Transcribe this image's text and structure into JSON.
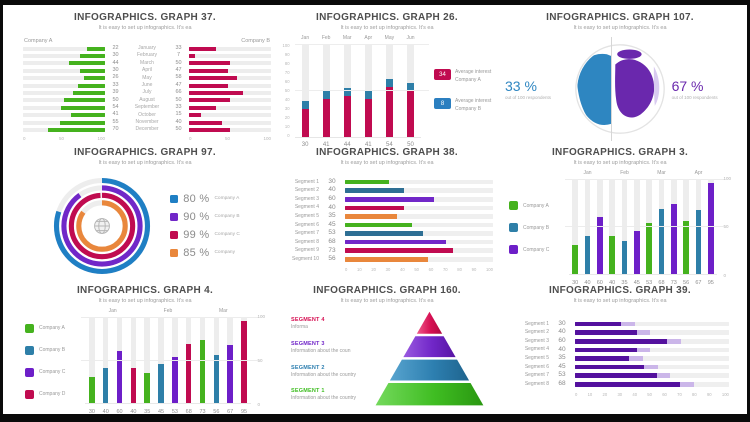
{
  "page": {
    "subtitle": "It is easy to set up infographics. It's ea",
    "background": "#ffffff",
    "frame_color": "#000000"
  },
  "chart_data": [
    {
      "id": "graph-37",
      "type": "tornado",
      "title": "INFOGRAPHICS. GRAPH 37.",
      "categories": [
        "January",
        "February",
        "March",
        "April",
        "May",
        "June",
        "July",
        "August",
        "September",
        "October",
        "November",
        "December"
      ],
      "series": [
        {
          "name": "Company A",
          "color": "#45b21e",
          "values": [
            22,
            30,
            44,
            30,
            26,
            33,
            39,
            50,
            54,
            41,
            55,
            70
          ]
        },
        {
          "name": "Company B",
          "color": "#c00b50",
          "values": [
            33,
            7,
            50,
            47,
            58,
            47,
            66,
            50,
            33,
            15,
            40,
            50
          ]
        }
      ],
      "axis_ticks": [
        "0",
        "50",
        "100"
      ],
      "xlim": [
        0,
        100
      ]
    },
    {
      "id": "graph-26",
      "type": "columns",
      "title": "INFOGRAPHICS. GRAPH 26.",
      "months": [
        "Jan",
        "Feb",
        "Mar",
        "Apr",
        "May",
        "Jun"
      ],
      "values": [
        30,
        41,
        44,
        41,
        54,
        50
      ],
      "cap_value": 8,
      "bar_color": "#c00b50",
      "cap_color": "#2e7fa8",
      "yticks": [
        "100",
        "90",
        "80",
        "70",
        "60",
        "50",
        "40",
        "30",
        "20",
        "10",
        "0"
      ],
      "ylim": [
        0,
        100
      ],
      "legend": [
        {
          "badge": "34",
          "color": "#c00b50",
          "label": "Average interest Company A"
        },
        {
          "badge": "8",
          "color": "#2b7fc0",
          "label": "Average interest Company B"
        }
      ]
    },
    {
      "id": "graph-107",
      "type": "globe",
      "title": "INFOGRAPHICS. GRAPH 107.",
      "left": {
        "value": "33 %",
        "caption": "out of 100 respondents",
        "color": "#2e86c1"
      },
      "right": {
        "value": "67 %",
        "caption": "out of 100 respondents",
        "color": "#6a28ad"
      }
    },
    {
      "id": "graph-97",
      "type": "rings",
      "title": "INFOGRAPHICS. GRAPH 97.",
      "items": [
        {
          "value": 80,
          "pct": "80 %",
          "label": "Company A",
          "color": "#1f7fc4"
        },
        {
          "value": 90,
          "pct": "90 %",
          "label": "Company B",
          "color": "#7127c8"
        },
        {
          "value": 99,
          "pct": "99 %",
          "label": "Company C",
          "color": "#c00b50"
        },
        {
          "value": 85,
          "pct": "85 %",
          "label": "Company",
          "color": "#e9873c"
        }
      ]
    },
    {
      "id": "graph-38",
      "type": "hbars",
      "title": "INFOGRAPHICS. GRAPH 38.",
      "categories": [
        "Segment 1",
        "Segment 2",
        "Segment 3",
        "Segment 4",
        "Segment 5",
        "Segment 6",
        "Segment 7",
        "Segment 8",
        "Segment 9",
        "Segment 10"
      ],
      "values": [
        30,
        40,
        60,
        40,
        35,
        45,
        53,
        68,
        73,
        56
      ],
      "colors": [
        "#45b21e",
        "#2e6f94",
        "#7127c8",
        "#c00b50",
        "#e9873c"
      ],
      "axis_ticks": [
        "0",
        "10",
        "20",
        "30",
        "40",
        "50",
        "60",
        "70",
        "80",
        "90",
        "100"
      ],
      "xlim": [
        0,
        100
      ]
    },
    {
      "id": "graph-3",
      "type": "gcols",
      "title": "INFOGRAPHICS. GRAPH 3.",
      "months": [
        "Jan",
        "Feb",
        "Mar",
        "Apr"
      ],
      "values": [
        30,
        40,
        60,
        40,
        35,
        45,
        53,
        68,
        73,
        56,
        67,
        95
      ],
      "colors": [
        "#45b21e",
        "#2e7fa8",
        "#6d1fc8"
      ],
      "legend": [
        {
          "label": "Company A",
          "color": "#45b21e"
        },
        {
          "label": "Company B",
          "color": "#2e7fa8"
        },
        {
          "label": "Company C",
          "color": "#6d1fc8"
        }
      ],
      "yticks": [
        "100",
        "50",
        "0"
      ],
      "ylim": [
        0,
        100
      ]
    },
    {
      "id": "graph-4",
      "type": "gcols",
      "title": "INFOGRAPHICS. GRAPH 4.",
      "months": [
        "Jan",
        "Feb",
        "Mar"
      ],
      "values": [
        30,
        40,
        60,
        40,
        35,
        45,
        53,
        68,
        73,
        56,
        67,
        95
      ],
      "colors": [
        "#45b21e",
        "#2e7fa8",
        "#6d1fc8",
        "#c00b50"
      ],
      "legend": [
        {
          "label": "Company A",
          "color": "#45b21e"
        },
        {
          "label": "Company B",
          "color": "#2e7fa8"
        },
        {
          "label": "Company C",
          "color": "#6d1fc8"
        },
        {
          "label": "Company D",
          "color": "#c00b50"
        }
      ],
      "yticks": [
        "100",
        "50",
        "0"
      ],
      "ylim": [
        0,
        100
      ]
    },
    {
      "id": "graph-160",
      "type": "pyramid",
      "title": "INFOGRAPHICS. GRAPH 160.",
      "layers": [
        {
          "label": "SEGMENT 4",
          "info": "Informa",
          "color": "#d60f52",
          "color_light": "#ef5a8b",
          "color_dark": "#b00840"
        },
        {
          "label": "SEGMENT 3",
          "info": "Information about the coun",
          "color": "#7127c8",
          "color_light": "#9a5ae0",
          "color_dark": "#5714a3"
        },
        {
          "label": "SEGMENT 2",
          "info": "Information about the country",
          "color": "#2d7fb0",
          "color_light": "#58a4cf",
          "color_dark": "#1f648e"
        },
        {
          "label": "SEGMENT 1",
          "info": "Information about the country",
          "color": "#3fbd22",
          "color_light": "#74d95c",
          "color_dark": "#2a9711"
        }
      ]
    },
    {
      "id": "graph-39",
      "type": "hbars",
      "title": "INFOGRAPHICS. GRAPH 39.",
      "categories": [
        "Segment 1",
        "Segment 2",
        "Segment 3",
        "Segment 4",
        "Segment 5",
        "Segment 6",
        "Segment 7",
        "Segment 8"
      ],
      "values": [
        30,
        40,
        60,
        40,
        35,
        45,
        53,
        68
      ],
      "colors": [
        "#54119e"
      ],
      "ghost_color": "#cbb6e9",
      "axis_ticks": [
        "0",
        "10",
        "20",
        "30",
        "40",
        "50",
        "60",
        "70",
        "80",
        "90",
        "100"
      ],
      "xlim": [
        0,
        100
      ]
    }
  ]
}
